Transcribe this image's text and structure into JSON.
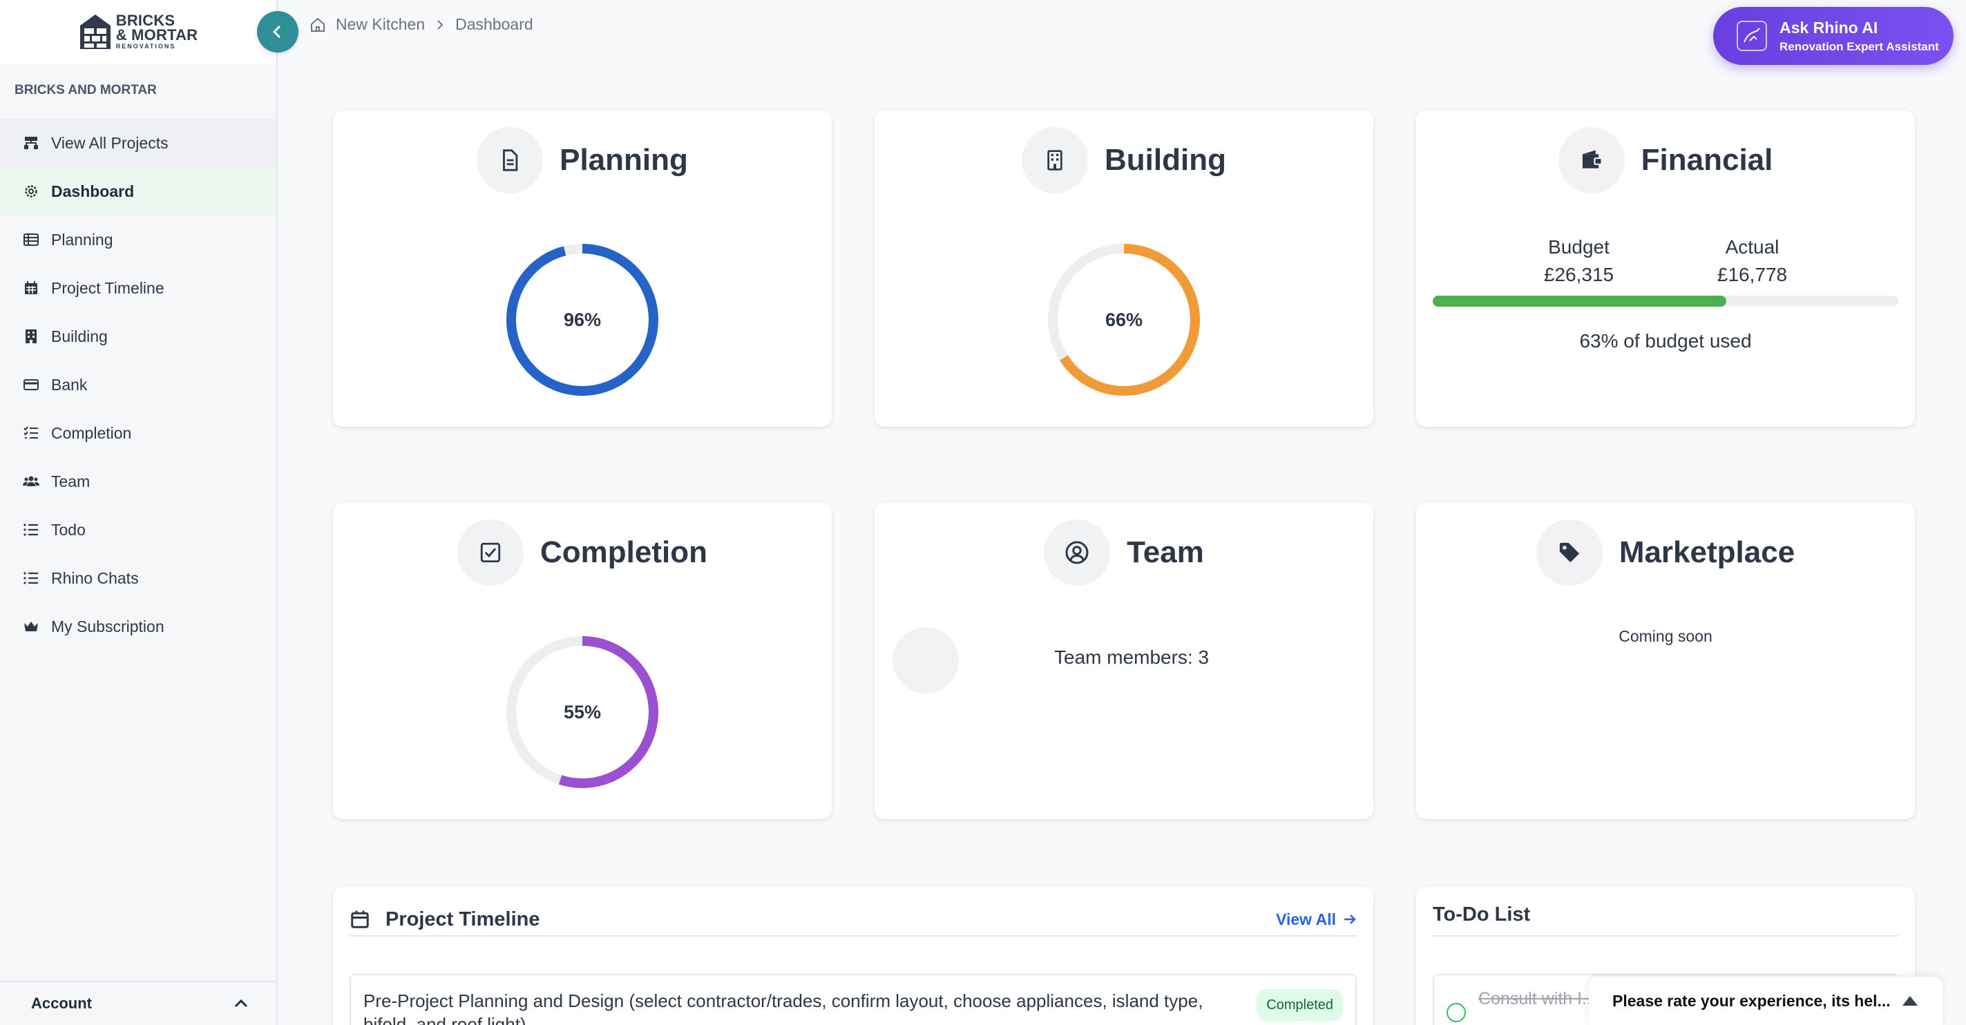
{
  "logo": {
    "line1": "BRICKS",
    "line2": "& MORTAR",
    "line3": "RENOVATIONS"
  },
  "sidebar": {
    "org_label": "BRICKS AND MORTAR",
    "items": [
      {
        "label": "View All Projects",
        "icon": "sitemap-icon"
      },
      {
        "label": "Dashboard",
        "icon": "gear-icon"
      },
      {
        "label": "Planning",
        "icon": "table-icon"
      },
      {
        "label": "Project Timeline",
        "icon": "calendar-icon"
      },
      {
        "label": "Building",
        "icon": "building-icon"
      },
      {
        "label": "Bank",
        "icon": "credit-card-icon"
      },
      {
        "label": "Completion",
        "icon": "checklist-icon"
      },
      {
        "label": "Team",
        "icon": "users-icon"
      },
      {
        "label": "Todo",
        "icon": "list-icon"
      },
      {
        "label": "Rhino Chats",
        "icon": "list-icon"
      },
      {
        "label": "My Subscription",
        "icon": "crown-icon"
      }
    ],
    "account_label": "Account"
  },
  "breadcrumb": {
    "project": "New Kitchen",
    "page": "Dashboard"
  },
  "ask_ai": {
    "title": "Ask Rhino AI",
    "subtitle": "Renovation Expert Assistant"
  },
  "cards": {
    "planning": {
      "title": "Planning",
      "percent_label": "96%",
      "value": 96,
      "color": "#2563c9"
    },
    "building": {
      "title": "Building",
      "percent_label": "66%",
      "value": 66,
      "color": "#f19a38"
    },
    "financial": {
      "title": "Financial",
      "budget_label": "Budget",
      "budget_value": "£26,315",
      "actual_label": "Actual",
      "actual_value": "£16,778",
      "used_fraction": 0.63,
      "used_text": "63% of budget used",
      "bar_color": "#4caf50"
    },
    "completion": {
      "title": "Completion",
      "percent_label": "55%",
      "value": 55,
      "color": "#9b4fd1"
    },
    "team": {
      "title": "Team",
      "members_text": "Team members: 3"
    },
    "marketplace": {
      "title": "Marketplace",
      "status": "Coming soon"
    }
  },
  "timeline": {
    "title": "Project Timeline",
    "view_all": "View All",
    "items": [
      {
        "text": "Pre-Project Planning and Design (select contractor/trades, confirm layout, choose appliances, island type, bifold, and roof light)",
        "status": "Completed"
      }
    ]
  },
  "todo": {
    "title": "To-Do List",
    "items": [
      {
        "text": "Consult with I... Support Wher..."
      }
    ]
  },
  "rating": {
    "text": "Please rate your experience, its hel..."
  }
}
